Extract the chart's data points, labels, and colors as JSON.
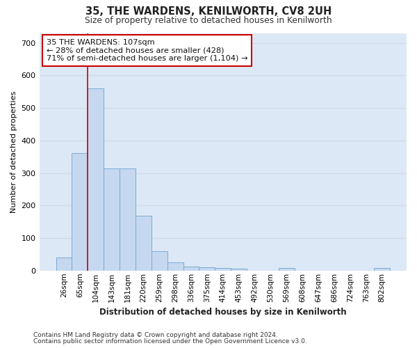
{
  "title": "35, THE WARDENS, KENILWORTH, CV8 2UH",
  "subtitle": "Size of property relative to detached houses in Kenilworth",
  "xlabel": "Distribution of detached houses by size in Kenilworth",
  "ylabel": "Number of detached properties",
  "footer_line1": "Contains HM Land Registry data © Crown copyright and database right 2024.",
  "footer_line2": "Contains public sector information licensed under the Open Government Licence v3.0.",
  "bar_labels": [
    "26sqm",
    "65sqm",
    "104sqm",
    "143sqm",
    "181sqm",
    "220sqm",
    "259sqm",
    "298sqm",
    "336sqm",
    "375sqm",
    "414sqm",
    "453sqm",
    "492sqm",
    "530sqm",
    "569sqm",
    "608sqm",
    "647sqm",
    "686sqm",
    "724sqm",
    "763sqm",
    "802sqm"
  ],
  "bar_values": [
    40,
    360,
    560,
    315,
    315,
    168,
    60,
    25,
    12,
    10,
    8,
    5,
    0,
    0,
    8,
    0,
    0,
    0,
    0,
    0,
    8
  ],
  "bar_color": "#c5d8f0",
  "bar_edge_color": "#7baad4",
  "red_line_x": 1.5,
  "annotation_title": "35 THE WARDENS: 107sqm",
  "annotation_line1": "← 28% of detached houses are smaller (428)",
  "annotation_line2": "71% of semi-detached houses are larger (1,104) →",
  "annotation_box_facecolor": "#ffffff",
  "annotation_box_edgecolor": "#cc0000",
  "grid_color": "#d0d8e4",
  "plot_bg_color": "#dce8f5",
  "fig_bg_color": "#ffffff",
  "ylim": [
    0,
    730
  ],
  "yticks": [
    0,
    100,
    200,
    300,
    400,
    500,
    600,
    700
  ]
}
